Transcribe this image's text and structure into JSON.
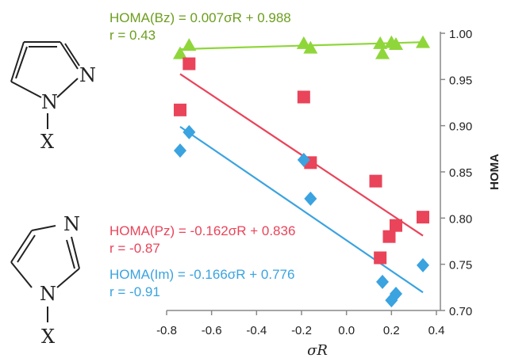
{
  "chart_data": {
    "type": "scatter",
    "xlabel": "σR",
    "ylabel": "HOMA",
    "xlim": [
      -0.8,
      0.4
    ],
    "ylim": [
      0.7,
      1.0
    ],
    "x_ticks": [
      "-0.8",
      "-0.6",
      "-0.4",
      "-0.2",
      "0.0",
      "0.2",
      "0.4"
    ],
    "y_ticks": [
      "0.70",
      "0.75",
      "0.80",
      "0.85",
      "0.90",
      "0.95",
      "1.00"
    ],
    "series": [
      {
        "name": "HOMA(Bz)",
        "marker": "triangle",
        "color": "#8fd63a",
        "equation": "HOMA(Bz) = 0.007σR + 0.988",
        "r_label": "r = 0.43",
        "fit": {
          "slope": 0.007,
          "intercept": 0.988,
          "x_range": [
            -0.74,
            0.34
          ]
        },
        "points": [
          {
            "x": -0.74,
            "y": 0.978
          },
          {
            "x": -0.7,
            "y": 0.987
          },
          {
            "x": -0.19,
            "y": 0.989
          },
          {
            "x": -0.16,
            "y": 0.984
          },
          {
            "x": 0.15,
            "y": 0.989
          },
          {
            "x": 0.16,
            "y": 0.978
          },
          {
            "x": 0.2,
            "y": 0.99
          },
          {
            "x": 0.22,
            "y": 0.988
          },
          {
            "x": 0.34,
            "y": 0.99
          }
        ]
      },
      {
        "name": "HOMA(Pz)",
        "marker": "square",
        "color": "#e9445a",
        "equation": "HOMA(Pz) = -0.162σR + 0.836",
        "r_label": "r = -0.87",
        "fit": {
          "slope": -0.162,
          "intercept": 0.836,
          "x_range": [
            -0.74,
            0.34
          ]
        },
        "points": [
          {
            "x": -0.74,
            "y": 0.917
          },
          {
            "x": -0.7,
            "y": 0.967
          },
          {
            "x": -0.19,
            "y": 0.931
          },
          {
            "x": -0.16,
            "y": 0.86
          },
          {
            "x": 0.13,
            "y": 0.84
          },
          {
            "x": 0.15,
            "y": 0.757
          },
          {
            "x": 0.19,
            "y": 0.78
          },
          {
            "x": 0.22,
            "y": 0.792
          },
          {
            "x": 0.34,
            "y": 0.801
          }
        ]
      },
      {
        "name": "HOMA(Im)",
        "marker": "diamond",
        "color": "#3aa3e0",
        "equation": "HOMA(Im) = -0.166σR + 0.776",
        "r_label": "r = -0.91",
        "fit": {
          "slope": -0.166,
          "intercept": 0.776,
          "x_range": [
            -0.74,
            0.34
          ]
        },
        "points": [
          {
            "x": -0.74,
            "y": 0.873
          },
          {
            "x": -0.7,
            "y": 0.893
          },
          {
            "x": -0.19,
            "y": 0.863
          },
          {
            "x": -0.16,
            "y": 0.821
          },
          {
            "x": 0.16,
            "y": 0.731
          },
          {
            "x": 0.2,
            "y": 0.711
          },
          {
            "x": 0.22,
            "y": 0.718
          },
          {
            "x": 0.34,
            "y": 0.749
          }
        ]
      }
    ]
  },
  "structures": [
    {
      "name": "pyrazole",
      "atom_n": "N",
      "atom_n1": "N",
      "atom_x": "X"
    },
    {
      "name": "imidazole",
      "atom_n": "N",
      "atom_n1": "N",
      "atom_x": "X"
    }
  ]
}
